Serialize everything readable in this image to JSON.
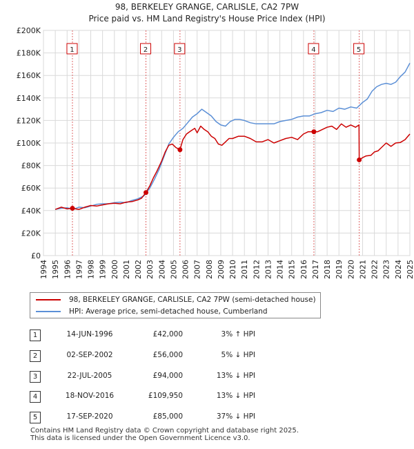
{
  "chart_data": {
    "type": "line",
    "title": "98, BERKELEY GRANGE, CARLISLE, CA2 7PW",
    "subtitle": "Price paid vs. HM Land Registry's House Price Index (HPI)",
    "xlabel": "",
    "ylabel": "",
    "xlim": [
      1994,
      2025
    ],
    "ylim": [
      0,
      200000
    ],
    "y_ticks": [
      0,
      20000,
      40000,
      60000,
      80000,
      100000,
      120000,
      140000,
      160000,
      180000,
      200000
    ],
    "y_tick_labels": [
      "£0",
      "£20K",
      "£40K",
      "£60K",
      "£80K",
      "£100K",
      "£120K",
      "£140K",
      "£160K",
      "£180K",
      "£200K"
    ],
    "x_ticks": [
      1994,
      1995,
      1996,
      1997,
      1998,
      1999,
      2000,
      2001,
      2002,
      2003,
      2004,
      2005,
      2006,
      2007,
      2008,
      2009,
      2010,
      2011,
      2012,
      2013,
      2014,
      2015,
      2016,
      2017,
      2018,
      2019,
      2020,
      2021,
      2022,
      2023,
      2024,
      2025
    ],
    "x_tick_labels": [
      "1994",
      "1995",
      "1996",
      "1997",
      "1998",
      "1999",
      "2000",
      "2001",
      "2002",
      "2003",
      "2004",
      "2005",
      "2006",
      "2007",
      "2008",
      "2009",
      "2010",
      "2011",
      "2012",
      "2013",
      "2014",
      "2015",
      "2016",
      "2017",
      "2018",
      "2019",
      "2020",
      "2021",
      "2022",
      "2023",
      "2024",
      "2025"
    ],
    "grid": true,
    "series": [
      {
        "name": "98, BERKELEY GRANGE, CARLISLE, CA2 7PW (semi-detached house)",
        "color": "#cc0000",
        "x": [
          1995.0,
          1995.5,
          1996.0,
          1996.45,
          1997.0,
          1997.5,
          1998.0,
          1998.5,
          1999.0,
          1999.5,
          2000.0,
          2000.5,
          2001.0,
          2001.5,
          2002.0,
          2002.3,
          2002.67,
          2003.0,
          2003.3,
          2003.6,
          2004.0,
          2004.3,
          2004.6,
          2004.9,
          2005.2,
          2005.55,
          2005.8,
          2006.1,
          2006.5,
          2006.8,
          2007.0,
          2007.3,
          2007.6,
          2007.9,
          2008.2,
          2008.5,
          2008.8,
          2009.1,
          2009.4,
          2009.7,
          2010.0,
          2010.5,
          2011.0,
          2011.5,
          2012.0,
          2012.5,
          2013.0,
          2013.5,
          2014.0,
          2014.5,
          2015.0,
          2015.5,
          2016.0,
          2016.4,
          2016.88,
          2017.2,
          2017.6,
          2018.0,
          2018.4,
          2018.8,
          2019.2,
          2019.6,
          2020.0,
          2020.4,
          2020.7,
          2020.715,
          2021.0,
          2021.3,
          2021.7,
          2022.0,
          2022.3,
          2022.6,
          2023.0,
          2023.4,
          2023.8,
          2024.2,
          2024.6,
          2025.0
        ],
        "values": [
          41000,
          43000,
          41500,
          42000,
          41000,
          43000,
          44500,
          44000,
          45000,
          46000,
          46500,
          46000,
          47500,
          48000,
          49500,
          51000,
          56000,
          62000,
          69000,
          75000,
          84000,
          92000,
          98000,
          99000,
          96000,
          94000,
          103000,
          108000,
          111000,
          113000,
          109000,
          115000,
          112000,
          110000,
          106000,
          104000,
          99000,
          98000,
          101000,
          104000,
          104000,
          106000,
          106000,
          104000,
          101000,
          101000,
          103000,
          100000,
          102000,
          104000,
          105000,
          103000,
          108000,
          110000,
          109950,
          110000,
          112000,
          114000,
          115000,
          112000,
          117000,
          114000,
          116000,
          114000,
          116000,
          85000,
          87000,
          88500,
          89000,
          92000,
          93000,
          96000,
          100000,
          97000,
          100000,
          100500,
          103000,
          108000
        ]
      },
      {
        "name": "HPI: Average price, semi-detached house, Cumberland",
        "color": "#5b8fd6",
        "x": [
          1995.0,
          1995.5,
          1996.0,
          1996.5,
          1997.0,
          1997.5,
          1998.0,
          1998.5,
          1999.0,
          1999.5,
          2000.0,
          2000.5,
          2001.0,
          2001.5,
          2002.0,
          2002.5,
          2003.0,
          2003.4,
          2003.8,
          2004.2,
          2004.6,
          2005.0,
          2005.4,
          2005.8,
          2006.2,
          2006.6,
          2007.0,
          2007.4,
          2007.8,
          2008.2,
          2008.6,
          2009.0,
          2009.4,
          2009.8,
          2010.2,
          2010.6,
          2011.0,
          2011.5,
          2012.0,
          2012.5,
          2013.0,
          2013.5,
          2014.0,
          2014.5,
          2015.0,
          2015.5,
          2016.0,
          2016.5,
          2017.0,
          2017.5,
          2018.0,
          2018.5,
          2019.0,
          2019.5,
          2020.0,
          2020.5,
          2021.0,
          2021.4,
          2021.8,
          2022.2,
          2022.6,
          2023.0,
          2023.4,
          2023.8,
          2024.2,
          2024.6,
          2025.0
        ],
        "values": [
          41000,
          42000,
          42500,
          41000,
          43000,
          42500,
          44000,
          45500,
          46000,
          46000,
          47000,
          47500,
          47000,
          49000,
          50500,
          53000,
          60000,
          68000,
          77000,
          88000,
          99000,
          105000,
          110000,
          113000,
          118000,
          123000,
          126000,
          130000,
          127000,
          124000,
          119000,
          116000,
          115000,
          119000,
          121000,
          121000,
          120000,
          118000,
          117000,
          117000,
          117000,
          117000,
          119000,
          120000,
          121000,
          123000,
          124000,
          124000,
          126000,
          127000,
          129000,
          128000,
          131000,
          130000,
          132000,
          131000,
          136000,
          139000,
          146000,
          150000,
          152000,
          153000,
          152000,
          154000,
          159000,
          163000,
          171000
        ]
      }
    ],
    "sales": [
      {
        "num": "1",
        "year": 1996.45,
        "price": 42000
      },
      {
        "num": "2",
        "year": 2002.67,
        "price": 56000
      },
      {
        "num": "3",
        "year": 2005.55,
        "price": 94000
      },
      {
        "num": "4",
        "year": 2016.88,
        "price": 109950
      },
      {
        "num": "5",
        "year": 2020.715,
        "price": 85000
      }
    ]
  },
  "legend": {
    "property_label": "98, BERKELEY GRANGE, CARLISLE, CA2 7PW (semi-detached house)",
    "hpi_label": "HPI: Average price, semi-detached house, Cumberland"
  },
  "transactions": [
    {
      "num": "1",
      "date": "14-JUN-1996",
      "price": "£42,000",
      "hpi": "3% ↑ HPI"
    },
    {
      "num": "2",
      "date": "02-SEP-2002",
      "price": "£56,000",
      "hpi": "5% ↓ HPI"
    },
    {
      "num": "3",
      "date": "22-JUL-2005",
      "price": "£94,000",
      "hpi": "13% ↓ HPI"
    },
    {
      "num": "4",
      "date": "18-NOV-2016",
      "price": "£109,950",
      "hpi": "13% ↓ HPI"
    },
    {
      "num": "5",
      "date": "17-SEP-2020",
      "price": "£85,000",
      "hpi": "37% ↓ HPI"
    }
  ],
  "footer": {
    "line1": "Contains HM Land Registry data © Crown copyright and database right 2025.",
    "line2": "This data is licensed under the Open Government Licence v3.0."
  },
  "colors": {
    "property": "#cc0000",
    "hpi": "#5b8fd6",
    "grid": "#d9d9d9",
    "marker_line": "#e06666"
  }
}
